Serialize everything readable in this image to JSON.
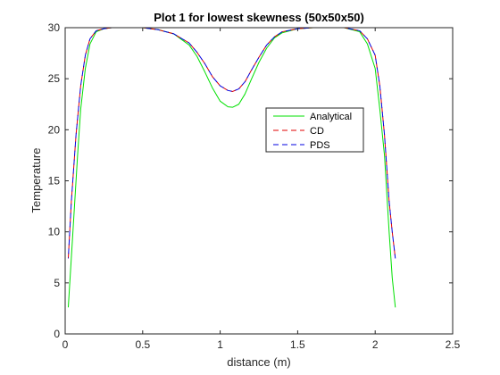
{
  "chart_data": {
    "type": "line",
    "title": "Plot 1 for lowest skewness (50x50x50)",
    "xlabel": "distance (m)",
    "ylabel": "Temperature",
    "xlim": [
      0,
      2.5
    ],
    "ylim": [
      0,
      30
    ],
    "xticks": [
      0,
      0.5,
      1,
      1.5,
      2,
      2.5
    ],
    "xtick_labels": [
      "0",
      "0.5",
      "1",
      "1.5",
      "2",
      "2.5"
    ],
    "yticks": [
      0,
      5,
      10,
      15,
      20,
      25,
      30
    ],
    "ytick_labels": [
      "0",
      "5",
      "10",
      "15",
      "20",
      "25",
      "30"
    ],
    "grid": false,
    "legend_position": "upper-right-inside",
    "series": [
      {
        "name": "Analytical",
        "color": "#00e000",
        "dash": "solid",
        "x": [
          0.02,
          0.05,
          0.08,
          0.1,
          0.13,
          0.16,
          0.2,
          0.25,
          0.3,
          0.4,
          0.5,
          0.6,
          0.7,
          0.8,
          0.85,
          0.9,
          0.95,
          1.0,
          1.05,
          1.08,
          1.12,
          1.16,
          1.2,
          1.25,
          1.3,
          1.35,
          1.4,
          1.5,
          1.6,
          1.7,
          1.8,
          1.9,
          1.95,
          2.0,
          2.03,
          2.06,
          2.09,
          2.11,
          2.13
        ],
        "y": [
          2.6,
          10.0,
          17.5,
          22.0,
          26.0,
          28.4,
          29.6,
          29.9,
          30.0,
          30.0,
          30.0,
          29.8,
          29.4,
          28.3,
          27.2,
          25.7,
          24.1,
          22.8,
          22.25,
          22.2,
          22.5,
          23.5,
          24.9,
          26.6,
          28.0,
          29.0,
          29.5,
          29.9,
          30.0,
          30.0,
          30.0,
          29.6,
          28.4,
          26.0,
          22.0,
          17.5,
          10.0,
          5.5,
          2.6
        ]
      },
      {
        "name": "CD",
        "color": "#e00000",
        "dash": "dashed",
        "x": [
          0.02,
          0.04,
          0.07,
          0.1,
          0.13,
          0.16,
          0.2,
          0.25,
          0.3,
          0.4,
          0.5,
          0.6,
          0.7,
          0.8,
          0.85,
          0.9,
          0.95,
          1.0,
          1.05,
          1.08,
          1.12,
          1.16,
          1.2,
          1.25,
          1.3,
          1.35,
          1.4,
          1.5,
          1.6,
          1.7,
          1.8,
          1.9,
          1.95,
          2.0,
          2.03,
          2.06,
          2.09,
          2.11,
          2.13
        ],
        "y": [
          7.4,
          13.0,
          19.5,
          24.3,
          27.3,
          28.9,
          29.7,
          29.9,
          30.0,
          30.0,
          30.0,
          29.8,
          29.4,
          28.5,
          27.6,
          26.5,
          25.2,
          24.3,
          23.85,
          23.75,
          24.0,
          24.7,
          25.8,
          27.1,
          28.3,
          29.1,
          29.6,
          29.9,
          30.0,
          30.0,
          30.0,
          29.7,
          28.9,
          27.3,
          24.3,
          19.5,
          13.0,
          10.0,
          7.4
        ]
      },
      {
        "name": "PDS",
        "color": "#0000e0",
        "dash": "dashed",
        "x": [
          0.02,
          0.04,
          0.07,
          0.1,
          0.13,
          0.16,
          0.2,
          0.25,
          0.3,
          0.4,
          0.5,
          0.6,
          0.7,
          0.8,
          0.85,
          0.9,
          0.95,
          1.0,
          1.05,
          1.08,
          1.12,
          1.16,
          1.2,
          1.25,
          1.3,
          1.35,
          1.4,
          1.5,
          1.6,
          1.7,
          1.8,
          1.9,
          1.95,
          2.0,
          2.03,
          2.06,
          2.09,
          2.11,
          2.13
        ],
        "y": [
          7.4,
          13.0,
          19.5,
          24.3,
          27.3,
          28.9,
          29.7,
          29.9,
          30.0,
          30.0,
          30.0,
          29.8,
          29.4,
          28.5,
          27.6,
          26.5,
          25.2,
          24.3,
          23.85,
          23.75,
          24.0,
          24.7,
          25.8,
          27.1,
          28.3,
          29.1,
          29.6,
          29.9,
          30.0,
          30.0,
          30.0,
          29.7,
          28.9,
          27.3,
          24.3,
          19.5,
          13.0,
          10.0,
          7.4
        ]
      }
    ]
  }
}
